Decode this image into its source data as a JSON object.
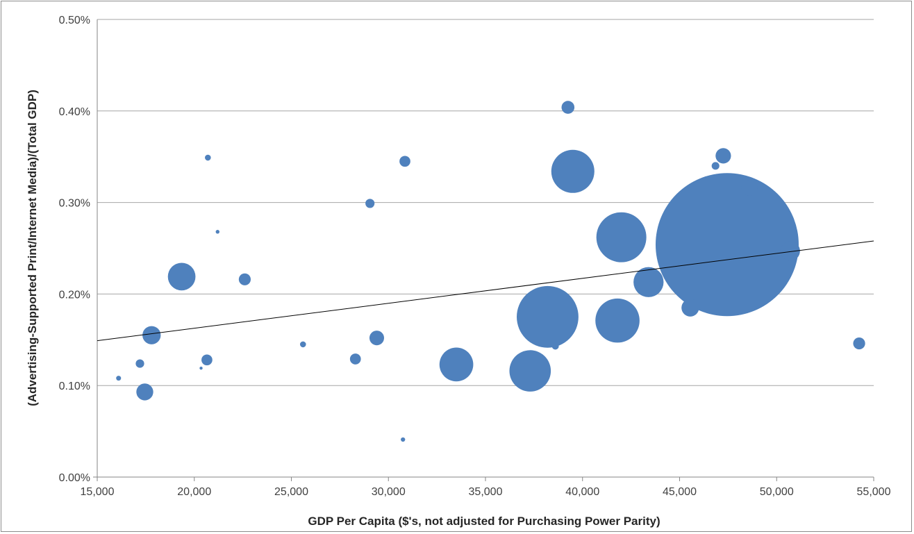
{
  "chart_data": {
    "type": "scatter",
    "xlabel": "GDP Per Capita ($'s, not adjusted for Purchasing Power Parity)",
    "ylabel": "(Advertising-Supported Print/Internet Media)/(Total GDP)",
    "xlim": [
      15000,
      55000
    ],
    "ylim": [
      0,
      0.005
    ],
    "x_ticks": [
      "15,000",
      "20,000",
      "25,000",
      "30,000",
      "35,000",
      "40,000",
      "45,000",
      "50,000",
      "55,000"
    ],
    "y_ticks": [
      "0.00%",
      "0.10%",
      "0.20%",
      "0.30%",
      "0.40%",
      "0.50%"
    ],
    "grid": "horizontal",
    "legend": "none",
    "bubble_color": "#4f81bd",
    "trendline": {
      "x": [
        15000,
        55000
      ],
      "y": [
        0.00149,
        0.00258
      ],
      "color": "#000000"
    },
    "points": [
      {
        "x": 16100,
        "y": 0.00108,
        "size": 1
      },
      {
        "x": 17200,
        "y": 0.00124,
        "size": 3
      },
      {
        "x": 17450,
        "y": 0.00093,
        "size": 12
      },
      {
        "x": 17800,
        "y": 0.00155,
        "size": 14
      },
      {
        "x": 19350,
        "y": 0.00219,
        "size": 32
      },
      {
        "x": 20350,
        "y": 0.00119,
        "size": 0.3
      },
      {
        "x": 20650,
        "y": 0.00128,
        "size": 5
      },
      {
        "x": 20700,
        "y": 0.00349,
        "size": 1.5
      },
      {
        "x": 21200,
        "y": 0.00268,
        "size": 0.6
      },
      {
        "x": 22600,
        "y": 0.00216,
        "size": 6
      },
      {
        "x": 25600,
        "y": 0.00145,
        "size": 1.5
      },
      {
        "x": 28300,
        "y": 0.00129,
        "size": 5
      },
      {
        "x": 29050,
        "y": 0.00299,
        "size": 3.5
      },
      {
        "x": 29400,
        "y": 0.00152,
        "size": 9
      },
      {
        "x": 30750,
        "y": 0.00041,
        "size": 0.8
      },
      {
        "x": 30850,
        "y": 0.00345,
        "size": 5
      },
      {
        "x": 33500,
        "y": 0.00123,
        "size": 48
      },
      {
        "x": 37300,
        "y": 0.00116,
        "size": 72
      },
      {
        "x": 38200,
        "y": 0.00175,
        "size": 160
      },
      {
        "x": 38600,
        "y": 0.00143,
        "size": 2
      },
      {
        "x": 39250,
        "y": 0.00404,
        "size": 7
      },
      {
        "x": 39500,
        "y": 0.00334,
        "size": 78
      },
      {
        "x": 41800,
        "y": 0.00171,
        "size": 82
      },
      {
        "x": 42000,
        "y": 0.00262,
        "size": 105
      },
      {
        "x": 43400,
        "y": 0.00213,
        "size": 38
      },
      {
        "x": 45550,
        "y": 0.00185,
        "size": 13
      },
      {
        "x": 46850,
        "y": 0.0034,
        "size": 2.5
      },
      {
        "x": 47250,
        "y": 0.00351,
        "size": 10
      },
      {
        "x": 47450,
        "y": 0.00254,
        "size": 860
      },
      {
        "x": 48600,
        "y": 0.00316,
        "size": 11
      },
      {
        "x": 50700,
        "y": 0.00247,
        "size": 16
      },
      {
        "x": 54250,
        "y": 0.00146,
        "size": 6
      }
    ]
  }
}
